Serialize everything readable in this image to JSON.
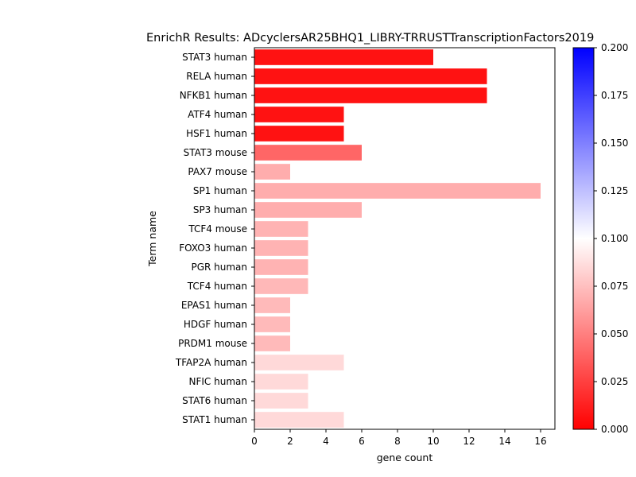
{
  "chart_data": {
    "type": "bar",
    "orientation": "horizontal",
    "title": "EnrichR Results: ADcyclersAR25BHQ1_LIBRY-TRRUSTTranscriptionFactors2019",
    "xlabel": "gene count",
    "ylabel": "Term name",
    "xlim": [
      0,
      16.8
    ],
    "x_ticks": [
      "0",
      "2",
      "4",
      "6",
      "8",
      "10",
      "12",
      "14",
      "16"
    ],
    "categories": [
      "STAT3 human",
      "RELA human",
      "NFKB1 human",
      "ATF4 human",
      "HSF1 human",
      "STAT3 mouse",
      "PAX7 mouse",
      "SP1 human",
      "SP3 human",
      "TCF4 mouse",
      "FOXO3 human",
      "PGR human",
      "TCF4 human",
      "EPAS1 human",
      "HDGF human",
      "PRDM1 mouse",
      "TFAP2A human",
      "NFIC human",
      "STAT6 human",
      "STAT1 human"
    ],
    "values": [
      10,
      13,
      13,
      5,
      5,
      6,
      2,
      16,
      6,
      3,
      3,
      3,
      3,
      2,
      2,
      2,
      5,
      3,
      3,
      5
    ],
    "color_values": [
      0.007,
      0.007,
      0.007,
      0.007,
      0.007,
      0.04,
      0.068,
      0.068,
      0.068,
      0.07,
      0.07,
      0.07,
      0.072,
      0.073,
      0.073,
      0.073,
      0.085,
      0.085,
      0.085,
      0.085
    ],
    "colorbar": {
      "range": [
        0.0,
        0.2
      ],
      "ticks": [
        "0.000",
        "0.025",
        "0.050",
        "0.075",
        "0.100",
        "0.125",
        "0.150",
        "0.175",
        "0.200"
      ],
      "colors": [
        "#ff0000",
        "#ffffff",
        "#0000ff"
      ]
    },
    "grid": false,
    "legend": "none"
  }
}
